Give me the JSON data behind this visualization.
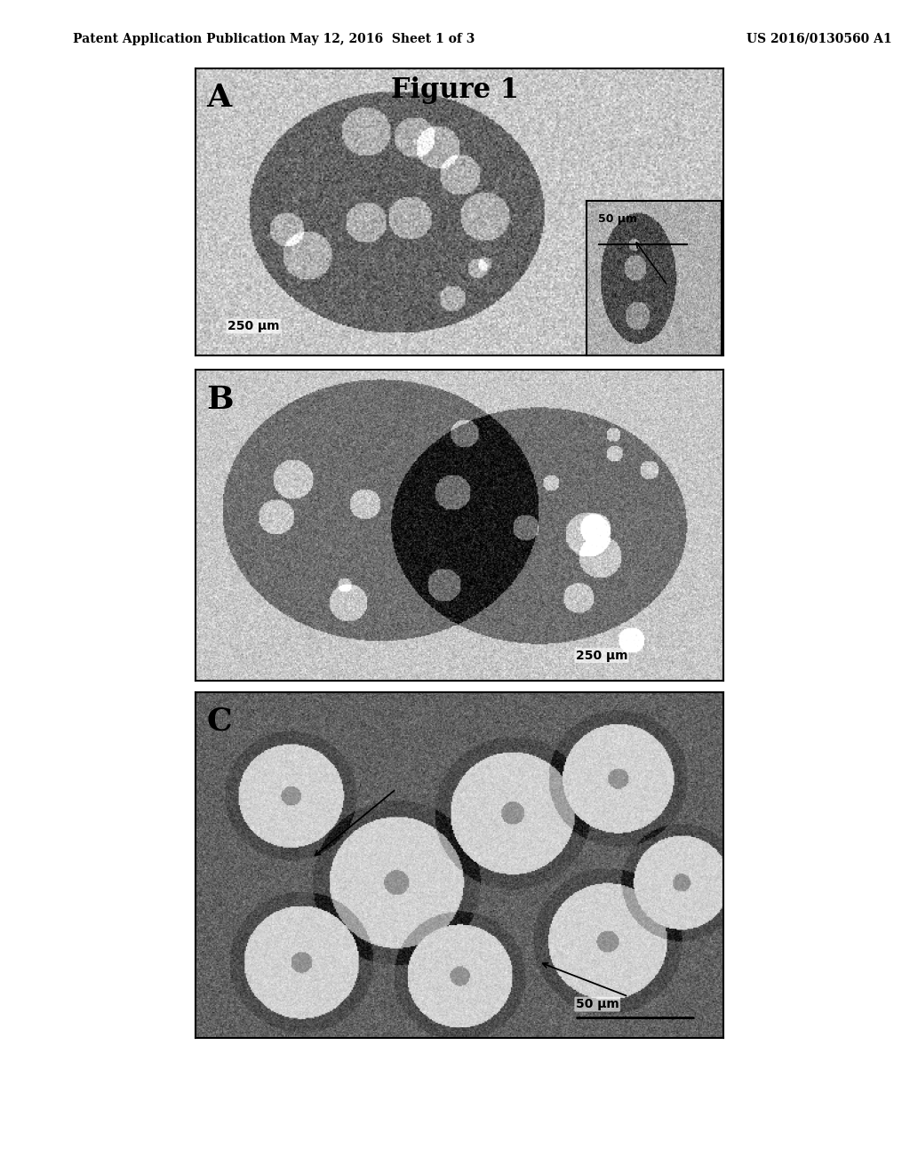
{
  "header_left": "Patent Application Publication",
  "header_center": "May 12, 2016  Sheet 1 of 3",
  "header_right": "US 2016/0130560 A1",
  "figure_title": "Figure 1",
  "panel_A": {
    "label": "A",
    "scale_main": "250 μm",
    "scale_inset": "50 μm",
    "has_inset": true
  },
  "panel_B": {
    "label": "B",
    "scale": "250 μm",
    "has_inset": false
  },
  "panel_C": {
    "label": "C",
    "scale": "50 μm",
    "has_inset": false
  },
  "bg_color": "#ffffff",
  "border_color": "#000000",
  "text_color": "#000000",
  "header_fontsize": 10,
  "title_fontsize": 22,
  "label_fontsize": 26,
  "scale_fontsize": 9
}
